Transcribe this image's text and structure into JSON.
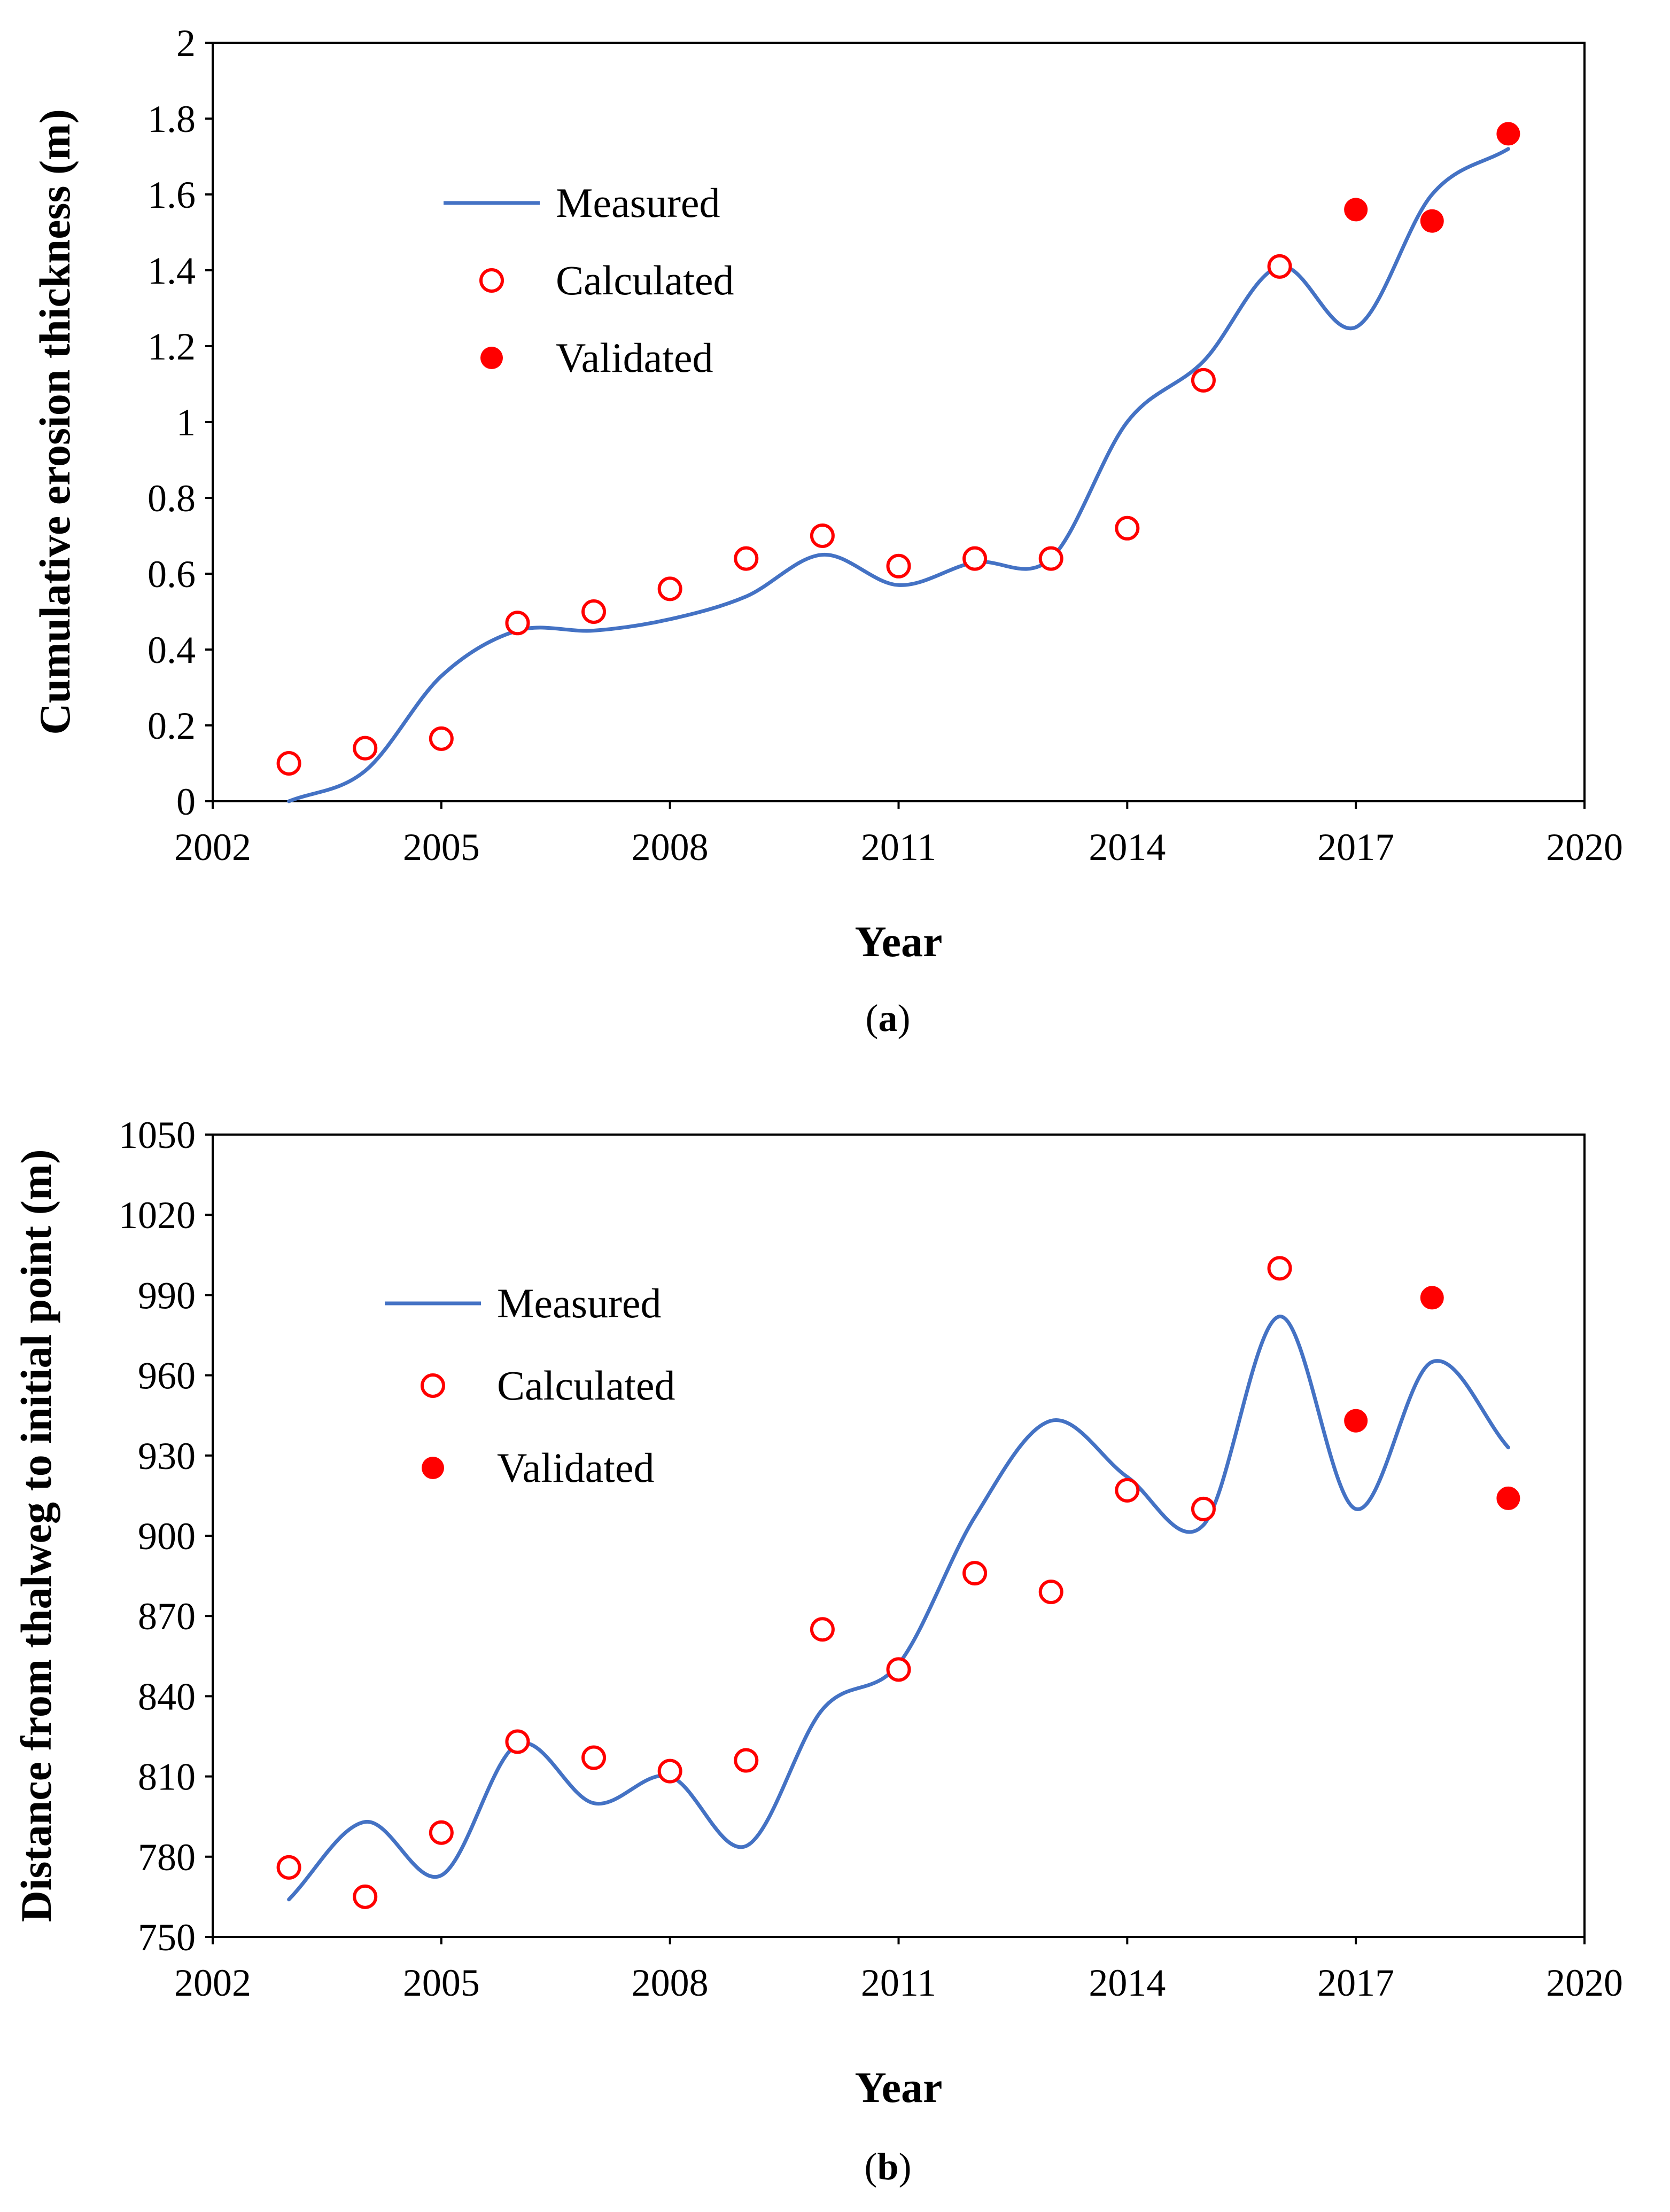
{
  "chart_data": [
    {
      "type": "line+scatter",
      "panel_label": "(a)",
      "panel_letter": "a",
      "xlabel": "Year",
      "ylabel": "Cumulative erosion thickness (m)",
      "xlim": [
        2002,
        2020
      ],
      "ylim": [
        0,
        2
      ],
      "xticks": [
        2002,
        2005,
        2008,
        2011,
        2014,
        2017,
        2020
      ],
      "xtick_labels": [
        "2002",
        "2005",
        "2008",
        "2011",
        "2014",
        "2017",
        "2020"
      ],
      "yticks": [
        0,
        0.2,
        0.4,
        0.6,
        0.8,
        1,
        1.2,
        1.4,
        1.6,
        1.8,
        2
      ],
      "ytick_labels": [
        "0",
        "0.2",
        "0.4",
        "0.6",
        "0.8",
        "1",
        "1.2",
        "1.4",
        "1.6",
        "1.8",
        "2"
      ],
      "legend": [
        "Measured",
        "Calculated",
        "Validated"
      ],
      "series": [
        {
          "name": "Measured",
          "style": "smooth-line",
          "color": "#4472C4",
          "x": [
            2003,
            2004,
            2005,
            2006,
            2007,
            2008,
            2009,
            2010,
            2011,
            2012,
            2013,
            2014,
            2015,
            2016,
            2017,
            2018,
            2019
          ],
          "y": [
            0.0,
            0.08,
            0.33,
            0.45,
            0.45,
            0.48,
            0.54,
            0.65,
            0.57,
            0.63,
            0.64,
            1.0,
            1.16,
            1.41,
            1.25,
            1.6,
            1.72
          ]
        },
        {
          "name": "Calculated",
          "style": "open-circle",
          "color": "#FF0000",
          "x": [
            2003,
            2004,
            2005,
            2006,
            2007,
            2008,
            2009,
            2010,
            2011,
            2012,
            2013,
            2014,
            2015,
            2016
          ],
          "y": [
            0.1,
            0.14,
            0.165,
            0.47,
            0.5,
            0.56,
            0.64,
            0.7,
            0.62,
            0.64,
            0.64,
            0.72,
            1.11,
            1.41
          ]
        },
        {
          "name": "Validated",
          "style": "filled-circle",
          "color": "#FF0000",
          "x": [
            2017,
            2018,
            2019
          ],
          "y": [
            1.56,
            1.53,
            1.76
          ]
        }
      ]
    },
    {
      "type": "line+scatter",
      "panel_label": "(b)",
      "panel_letter": "b",
      "xlabel": "Year",
      "ylabel": "Distance from thalweg to initial point (m)",
      "xlim": [
        2002,
        2020
      ],
      "ylim": [
        750,
        1050
      ],
      "xticks": [
        2002,
        2005,
        2008,
        2011,
        2014,
        2017,
        2020
      ],
      "xtick_labels": [
        "2002",
        "2005",
        "2008",
        "2011",
        "2014",
        "2017",
        "2020"
      ],
      "yticks": [
        750,
        780,
        810,
        840,
        870,
        900,
        930,
        960,
        990,
        1020,
        1050
      ],
      "ytick_labels": [
        "750",
        "780",
        "810",
        "840",
        "870",
        "900",
        "930",
        "960",
        "990",
        "1020",
        "1050"
      ],
      "legend": [
        "Measured",
        "Calculated",
        "Validated"
      ],
      "series": [
        {
          "name": "Measured",
          "style": "smooth-line",
          "color": "#4472C4",
          "x": [
            2003,
            2004,
            2005,
            2006,
            2007,
            2008,
            2009,
            2010,
            2011,
            2012,
            2013,
            2014,
            2015,
            2016,
            2017,
            2018,
            2019
          ],
          "y": [
            764,
            793,
            773,
            822,
            800,
            810,
            784,
            835,
            852,
            907,
            943,
            922,
            904,
            982,
            910,
            965,
            933
          ]
        },
        {
          "name": "Calculated",
          "style": "open-circle",
          "color": "#FF0000",
          "x": [
            2003,
            2004,
            2005,
            2006,
            2007,
            2008,
            2009,
            2010,
            2011,
            2012,
            2013,
            2014,
            2015,
            2016
          ],
          "y": [
            776,
            765,
            789,
            823,
            817,
            812,
            816,
            865,
            850,
            886,
            879,
            917,
            910,
            1000
          ]
        },
        {
          "name": "Validated",
          "style": "filled-circle",
          "color": "#FF0000",
          "x": [
            2017,
            2018,
            2019
          ],
          "y": [
            943,
            989,
            914
          ]
        }
      ]
    }
  ]
}
